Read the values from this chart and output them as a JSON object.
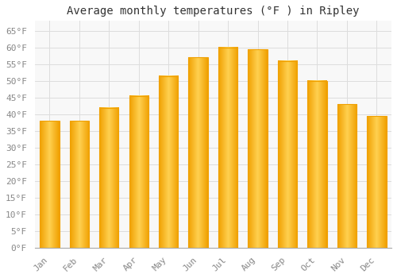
{
  "title": "Average monthly temperatures (°F ) in Ripley",
  "months": [
    "Jan",
    "Feb",
    "Mar",
    "Apr",
    "May",
    "Jun",
    "Jul",
    "Aug",
    "Sep",
    "Oct",
    "Nov",
    "Dec"
  ],
  "values": [
    38,
    38,
    42,
    45.5,
    51.5,
    57,
    60,
    59.5,
    56,
    50,
    43,
    39.5
  ],
  "bar_color_center": "#FFD050",
  "bar_color_edge": "#F0A000",
  "background_color": "#FFFFFF",
  "plot_bg_color": "#F8F8F8",
  "grid_color": "#DDDDDD",
  "yticks": [
    0,
    5,
    10,
    15,
    20,
    25,
    30,
    35,
    40,
    45,
    50,
    55,
    60,
    65
  ],
  "ytick_labels": [
    "0°F",
    "5°F",
    "10°F",
    "15°F",
    "20°F",
    "25°F",
    "30°F",
    "35°F",
    "40°F",
    "45°F",
    "50°F",
    "55°F",
    "60°F",
    "65°F"
  ],
  "ylim": [
    0,
    68
  ],
  "title_fontsize": 10,
  "tick_fontsize": 8,
  "tick_color": "#888888",
  "font_family": "monospace"
}
